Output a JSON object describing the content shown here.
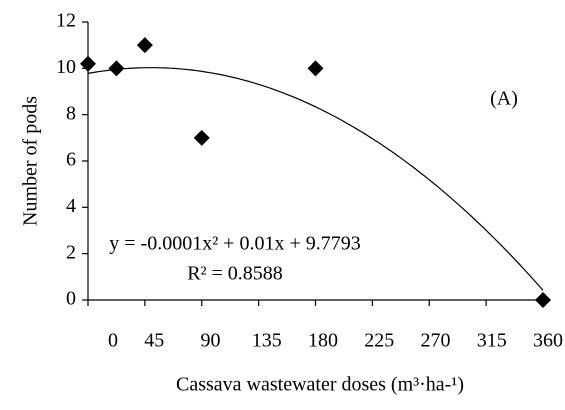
{
  "chart_data": {
    "type": "scatter",
    "xlabel": "Cassava wastewater doses (m³·ha-¹)",
    "ylabel": "Number of pods",
    "annotation": "(A)",
    "equation": "y = -0.0001x² + 0.01x + 9.7793",
    "r2": "R² = 0.8588",
    "x": [
      0,
      22.5,
      45,
      90,
      180,
      360
    ],
    "values": [
      10.2,
      10,
      11,
      7,
      10,
      0
    ],
    "color": "#000000",
    "trendline": {
      "coefficients": [
        -0.0001,
        0.01,
        9.7793
      ]
    },
    "xlim": [
      0,
      360
    ],
    "xticks": [
      0,
      45,
      90,
      135,
      180,
      225,
      270,
      315,
      360
    ],
    "ylim": [
      0,
      12
    ],
    "yticks": [
      0,
      2,
      4,
      6,
      8,
      10,
      12
    ]
  }
}
